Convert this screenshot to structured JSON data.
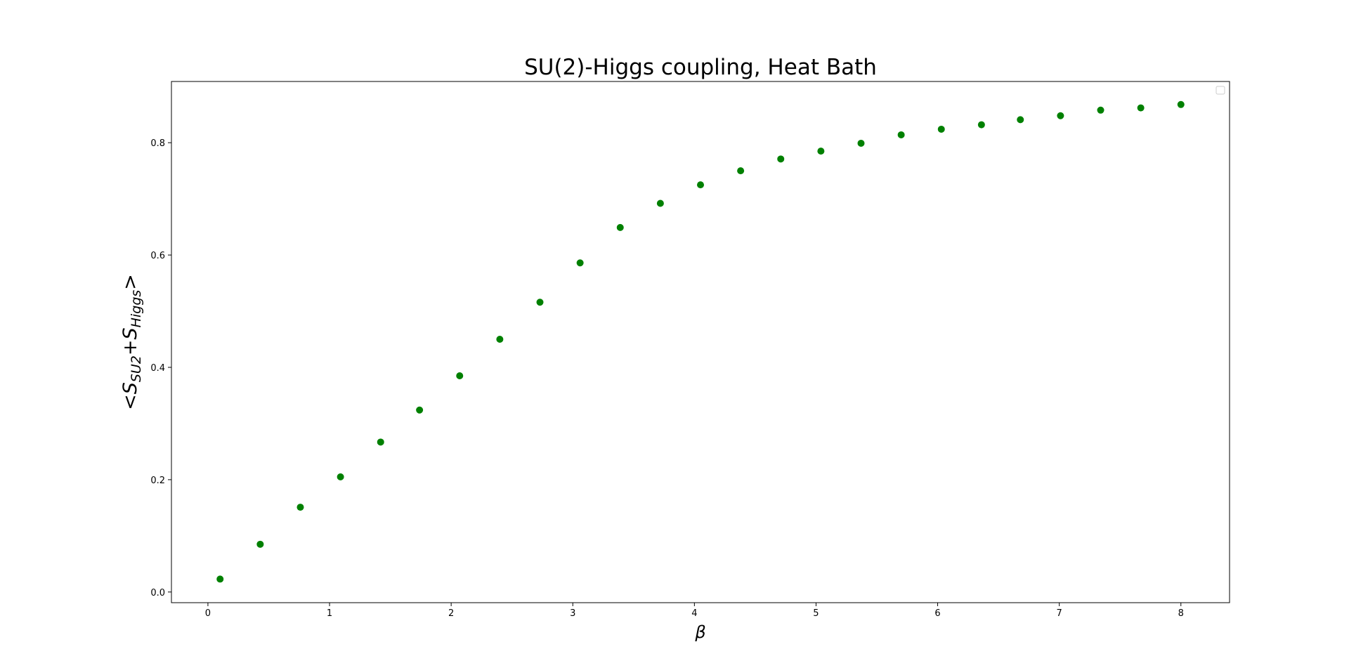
{
  "colors": {
    "marker": "#008000",
    "axes": "#000000",
    "background": "#ffffff"
  },
  "chart_data": {
    "type": "scatter",
    "title": "SU(2)-Higgs coupling, Heat Bath",
    "xlabel": "β",
    "ylabel": {
      "open": "<",
      "s1": "S",
      "sub1": "SU2",
      "plus": "+",
      "s2": "S",
      "sub2": "Higgs",
      "close": ">"
    },
    "xlim": [
      -0.3,
      8.4
    ],
    "ylim": [
      -0.019,
      0.909
    ],
    "xticks": [
      0,
      1,
      2,
      3,
      4,
      5,
      6,
      7,
      8
    ],
    "xtick_labels": [
      "0",
      "1",
      "2",
      "3",
      "4",
      "5",
      "6",
      "7",
      "8"
    ],
    "yticks": [
      0.0,
      0.2,
      0.4,
      0.6,
      0.8
    ],
    "ytick_labels": [
      "0.0",
      "0.2",
      "0.4",
      "0.6",
      "0.8"
    ],
    "grid": false,
    "legend": {
      "placement": "top-right",
      "entries": []
    },
    "series": [
      {
        "marker": "circle",
        "x": [
          0.1,
          0.43,
          0.76,
          1.09,
          1.42,
          1.74,
          2.07,
          2.4,
          2.73,
          3.06,
          3.39,
          3.72,
          4.05,
          4.38,
          4.71,
          5.04,
          5.37,
          5.7,
          6.03,
          6.36,
          6.68,
          7.01,
          7.34,
          7.67,
          8.0
        ],
        "y": [
          0.023,
          0.085,
          0.151,
          0.205,
          0.267,
          0.324,
          0.385,
          0.45,
          0.516,
          0.586,
          0.649,
          0.692,
          0.725,
          0.75,
          0.771,
          0.785,
          0.799,
          0.814,
          0.824,
          0.832,
          0.841,
          0.848,
          0.858,
          0.862,
          0.868
        ]
      }
    ]
  }
}
